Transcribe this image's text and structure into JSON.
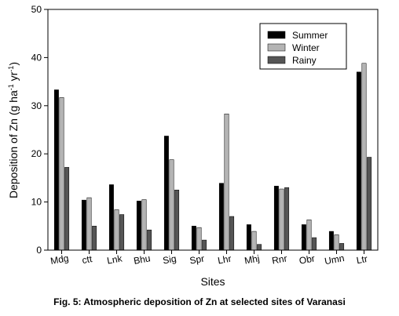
{
  "caption": "Fig. 5: Atmospheric deposition of Zn at selected sites of Varanasi",
  "chart_data": {
    "type": "bar",
    "categories": [
      "Mdg",
      "ctt",
      "Lnk",
      "Bhu",
      "Sig",
      "Spr",
      "Lhr",
      "Mhj",
      "Rnr",
      "Obr",
      "Umn",
      "Ltr"
    ],
    "series": [
      {
        "name": "Summer",
        "color": "#000000",
        "values": [
          33.3,
          10.4,
          13.6,
          10.2,
          23.7,
          5.0,
          13.9,
          5.3,
          13.3,
          5.3,
          3.9,
          37.0
        ]
      },
      {
        "name": "Winter",
        "color": "#b4b4b4",
        "values": [
          31.7,
          10.9,
          8.4,
          10.5,
          18.8,
          4.7,
          28.3,
          3.9,
          12.7,
          6.3,
          3.2,
          38.8
        ]
      },
      {
        "name": "Rainy",
        "color": "#555555",
        "values": [
          17.2,
          5.0,
          7.4,
          4.2,
          12.5,
          2.1,
          7.0,
          1.2,
          13.0,
          2.6,
          1.4,
          19.3
        ]
      }
    ],
    "xlabel": "Sites",
    "ylabel_main": "Deposition of Zn (g ha",
    "ylabel_sup1": "-1",
    "ylabel_mid": " yr",
    "ylabel_sup2": "-1",
    "ylabel_end": ")",
    "ylim": [
      0,
      50
    ],
    "yticks": [
      0,
      10,
      20,
      30,
      40,
      50
    ],
    "legend_position": "top-right",
    "grid": false
  }
}
